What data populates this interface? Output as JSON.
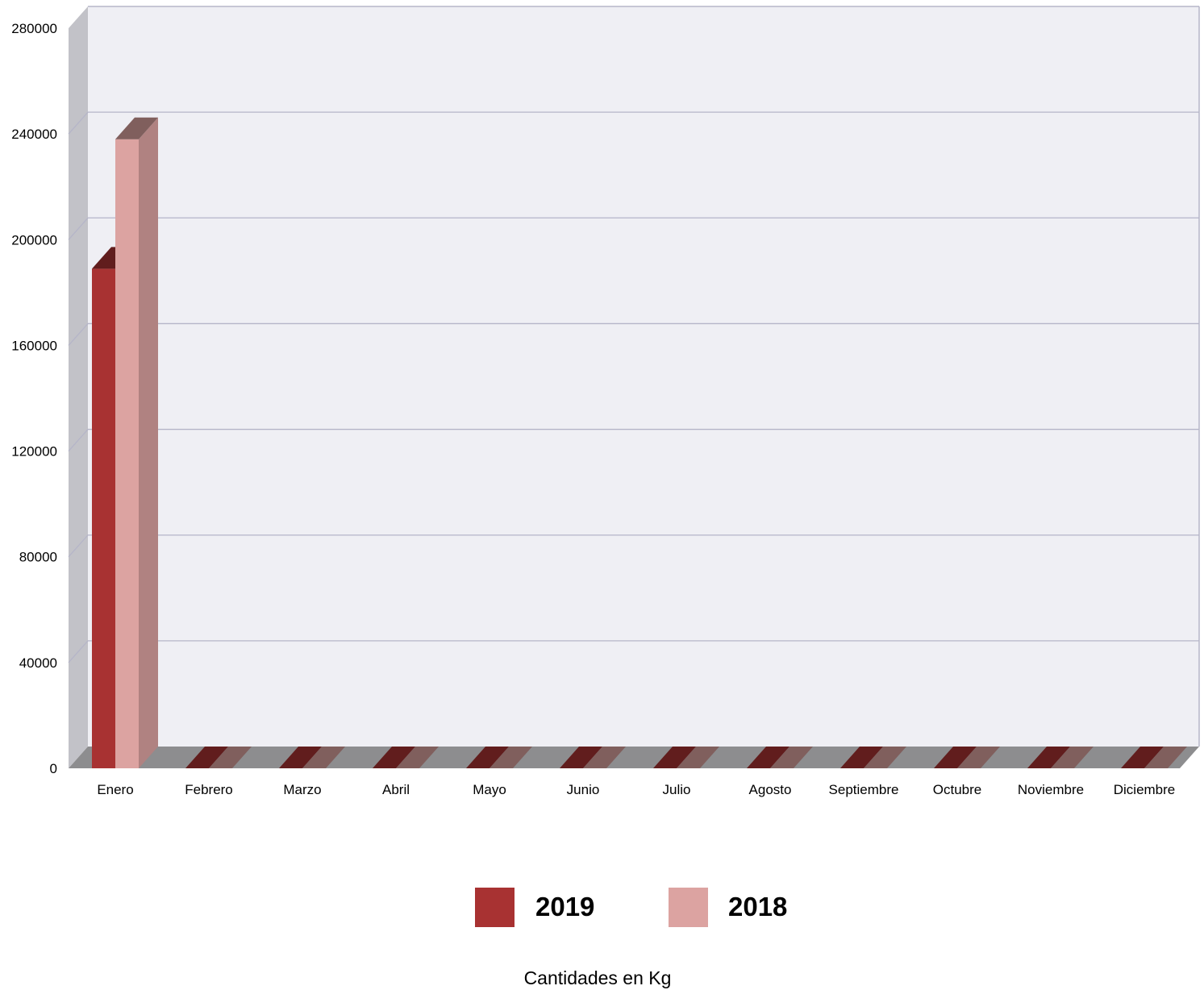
{
  "chart_data": {
    "type": "bar",
    "style": "3d-clustered-column",
    "categories": [
      "Enero",
      "Febrero",
      "Marzo",
      "Abril",
      "Mayo",
      "Junio",
      "Julio",
      "Agosto",
      "Septiembre",
      "Octubre",
      "Noviembre",
      "Diciembre"
    ],
    "series": [
      {
        "name": "2019",
        "color": "#a83232",
        "values": [
          189000,
          0,
          0,
          0,
          0,
          0,
          0,
          0,
          0,
          0,
          0,
          0
        ]
      },
      {
        "name": "2018",
        "color": "#dca3a1",
        "values": [
          238000,
          0,
          0,
          0,
          0,
          0,
          0,
          0,
          0,
          0,
          0,
          0
        ]
      }
    ],
    "ylim": [
      0,
      280000
    ],
    "yticks": [
      "0",
      "40000",
      "80000",
      "120000",
      "160000",
      "200000",
      "240000",
      "280000"
    ],
    "grid": true,
    "legend_position": "bottom",
    "caption": "Cantidades en Kg",
    "colors": {
      "plot_background": "#efeff4",
      "gridline": "#b5b5c8",
      "side_wall": "#c2c2c8",
      "floor": "#8d8d8f"
    }
  }
}
